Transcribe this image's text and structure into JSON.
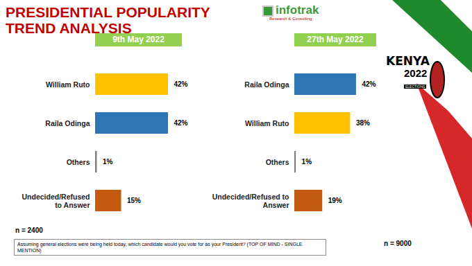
{
  "title": "PRESIDENTIAL POPULARITY TREND ANALYSIS",
  "logo": {
    "name": "infotrak",
    "tagline": "Research & Consulting"
  },
  "badge": {
    "country": "KENYA",
    "year": "2022",
    "label": "ELECTIONS"
  },
  "question": "Assuming general elections were being held today, which candidate would you vote for as your President? (TOP OF MIND - SINGLE MENTION)",
  "chart_data": [
    {
      "type": "bar",
      "orientation": "horizontal",
      "title": "9th May 2022",
      "sample": "n = 2400",
      "categories": [
        "William Ruto",
        "Raila Odinga",
        "Others",
        "Undecided/Refused to Answer"
      ],
      "values": [
        42,
        42,
        1,
        15
      ],
      "value_labels": [
        "42%",
        "42%",
        "1%",
        "15%"
      ],
      "colors": [
        "#ffc000",
        "#2e75b6",
        "#7f7f7f",
        "#c55a11"
      ],
      "xlim": [
        0,
        60
      ],
      "data_labels": true,
      "tick_labels": "y",
      "grid": false
    },
    {
      "type": "bar",
      "orientation": "horizontal",
      "title": "27th May 2022",
      "sample": "n = 9000",
      "categories": [
        "Raila Odinga",
        "William Ruto",
        "Others",
        "Undecided/Refused to Answer"
      ],
      "values": [
        42,
        38,
        1,
        19
      ],
      "value_labels": [
        "42%",
        "38%",
        "1%",
        "19%"
      ],
      "colors": [
        "#2e75b6",
        "#ffc000",
        "#7f7f7f",
        "#c55a11"
      ],
      "xlim": [
        0,
        60
      ],
      "data_labels": true,
      "tick_labels": "y",
      "grid": false
    }
  ]
}
